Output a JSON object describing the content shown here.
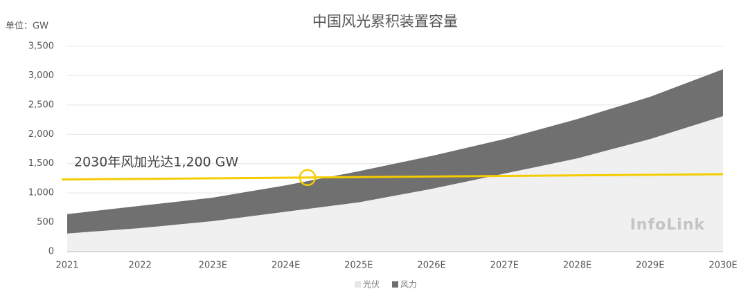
{
  "chart_data": {
    "type": "stacked-area",
    "title": "中国风光累积装置容量",
    "y_unit_label": "单位：GW",
    "watermark": "InfoLink",
    "categories": [
      "2021",
      "2022",
      "2023E",
      "2024E",
      "2025E",
      "2026E",
      "2027E",
      "2028E",
      "2029E",
      "2030E"
    ],
    "series": [
      {
        "name": "光伏",
        "color": "#f0f0f0",
        "values": [
          310,
          400,
          520,
          680,
          840,
          1070,
          1330,
          1590,
          1920,
          2310
        ]
      },
      {
        "name": "风力",
        "color": "#707070",
        "values": [
          330,
          380,
          400,
          450,
          530,
          560,
          590,
          670,
          720,
          800
        ]
      }
    ],
    "reference_line": {
      "label": "2030年风加光达1,200 GW",
      "color": "#f5cc00",
      "values": [
        1230,
        1320
      ]
    },
    "ylim": [
      0,
      3500
    ],
    "yticks": [
      0,
      500,
      {
        "value": 1000,
        "label": "1,000"
      },
      {
        "value": 1500,
        "label": "1,500"
      },
      {
        "value": 2000,
        "label": "2,000"
      },
      {
        "value": 2500,
        "label": "2,500"
      },
      {
        "value": 3000,
        "label": "3,000"
      },
      {
        "value": 3500,
        "label": "3,500"
      }
    ],
    "grid": true
  }
}
